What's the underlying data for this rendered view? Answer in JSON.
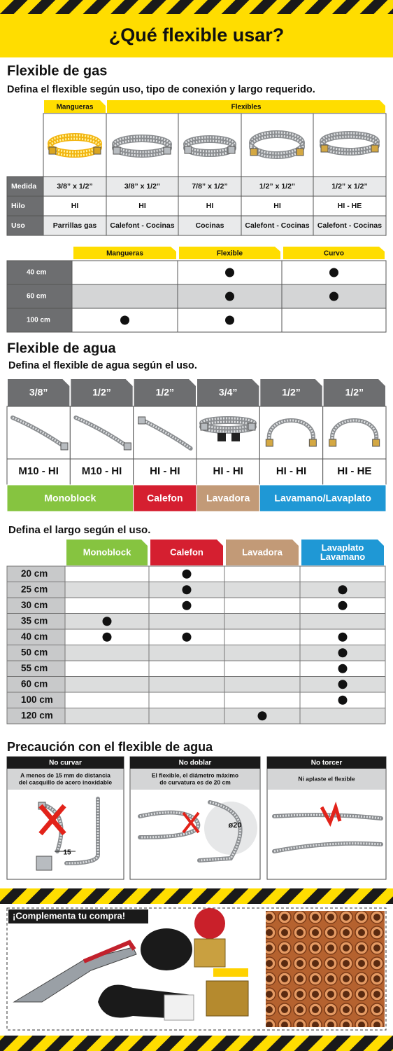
{
  "header": {
    "title": "¿Qué flexible usar?"
  },
  "gas": {
    "title": "Flexible de gas",
    "subtitle": "Defina el flexible según uso, tipo de conexión y largo requerido.",
    "groups": [
      "Mangueras",
      "Flexibles"
    ],
    "row_labels": [
      "Medida",
      "Hilo",
      "Uso"
    ],
    "rows": [
      [
        "3/8” x 1/2”",
        "3/8” x 1/2”",
        "7/8” x 1/2”",
        "1/2” x 1/2”",
        "1/2” x 1/2”"
      ],
      [
        "HI",
        "HI",
        "HI",
        "HI",
        "HI - HE"
      ],
      [
        "Parrillas gas",
        "Calefont - Cocinas",
        "Cocinas",
        "Calefont - Cocinas",
        "Calefont - Cocinas"
      ]
    ],
    "length_table": {
      "columns": [
        "Mangueras",
        "Flexible",
        "Curvo"
      ],
      "rows": [
        {
          "label": "40 cm",
          "marks": [
            false,
            true,
            true
          ]
        },
        {
          "label": "60 cm",
          "marks": [
            false,
            true,
            true
          ]
        },
        {
          "label": "100 cm",
          "marks": [
            true,
            true,
            false
          ]
        }
      ]
    }
  },
  "water": {
    "title": "Flexible de agua",
    "subtitle": "Defina el flexible de agua según el uso.",
    "sizes": [
      "3/8”",
      "1/2”",
      "1/2”",
      "3/4”",
      "1/2”",
      "1/2”"
    ],
    "connections": [
      "M10 - HI",
      "M10 - HI",
      "HI - HI",
      "HI - HI",
      "HI - HI",
      "HI - HE"
    ],
    "uses": [
      {
        "name": "Monoblock",
        "color": "#86c440"
      },
      {
        "name": "Calefon",
        "color": "#d51f30"
      },
      {
        "name": "Lavadora",
        "color": "#c29a77"
      },
      {
        "name": "Lavamano/Lavaplato",
        "color": "#1f98d5"
      }
    ],
    "length_title": "Defina el largo según el uso.",
    "length_table": {
      "columns": [
        [
          "Monoblock"
        ],
        [
          "Calefon"
        ],
        [
          "Lavadora"
        ],
        [
          "Lavaplato",
          "Lavamano"
        ]
      ],
      "rows": [
        {
          "label": "20 cm",
          "marks": [
            false,
            true,
            false,
            false
          ]
        },
        {
          "label": "25 cm",
          "marks": [
            false,
            true,
            false,
            true
          ]
        },
        {
          "label": "30 cm",
          "marks": [
            false,
            true,
            false,
            true
          ]
        },
        {
          "label": "35 cm",
          "marks": [
            true,
            false,
            false,
            false
          ]
        },
        {
          "label": "40 cm",
          "marks": [
            true,
            true,
            false,
            true
          ]
        },
        {
          "label": "50 cm",
          "marks": [
            false,
            false,
            false,
            true
          ]
        },
        {
          "label": "55 cm",
          "marks": [
            false,
            false,
            false,
            true
          ]
        },
        {
          "label": "60 cm",
          "marks": [
            false,
            false,
            false,
            true
          ]
        },
        {
          "label": "100 cm",
          "marks": [
            false,
            false,
            false,
            true
          ]
        },
        {
          "label": "120 cm",
          "marks": [
            false,
            false,
            true,
            false
          ]
        }
      ]
    }
  },
  "caution": {
    "title": "Precaución con el flexible de agua",
    "panels": [
      {
        "title": "No curvar",
        "text": [
          "A menos de 15 mm de distancia",
          "del casquillo de acero inoxidable"
        ],
        "label": "15"
      },
      {
        "title": "No doblar",
        "text": [
          "El flexible, el diámetro máximo",
          "de curvatura es de 20 cm"
        ],
        "label": "ø20"
      },
      {
        "title": "No torcer",
        "text": [
          "Ni aplaste el flexible"
        ]
      }
    ]
  },
  "promo": {
    "title": "¡Complementa tu compra!"
  }
}
